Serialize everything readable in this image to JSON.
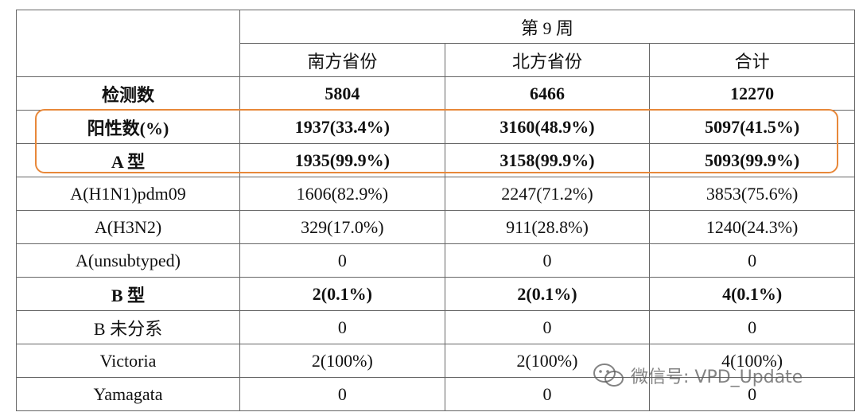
{
  "table": {
    "header": {
      "period": "第 9 周",
      "columns": [
        "南方省份",
        "北方省份",
        "合计"
      ]
    },
    "rows": [
      [
        "检测数",
        "5804",
        "6466",
        "12270"
      ],
      [
        "阳性数(%)",
        "1937(33.4%)",
        "3160(48.9%)",
        "5097(41.5%)"
      ],
      [
        "A 型",
        "1935(99.9%)",
        "3158(99.9%)",
        "5093(99.9%)"
      ],
      [
        "A(H1N1)pdm09",
        "1606(82.9%)",
        "2247(71.2%)",
        "3853(75.6%)"
      ],
      [
        "A(H3N2)",
        "329(17.0%)",
        "911(28.8%)",
        "1240(24.3%)"
      ],
      [
        "A(unsubtyped)",
        "0",
        "0",
        "0"
      ],
      [
        "B 型",
        "2(0.1%)",
        "2(0.1%)",
        "4(0.1%)"
      ],
      [
        "B 未分系",
        "0",
        "0",
        "0"
      ],
      [
        "Victoria",
        "2(100%)",
        "2(100%)",
        "4(100%)"
      ],
      [
        "Yamagata",
        "0",
        "0",
        "0"
      ]
    ]
  },
  "watermark": "微信号: VPD_Update"
}
